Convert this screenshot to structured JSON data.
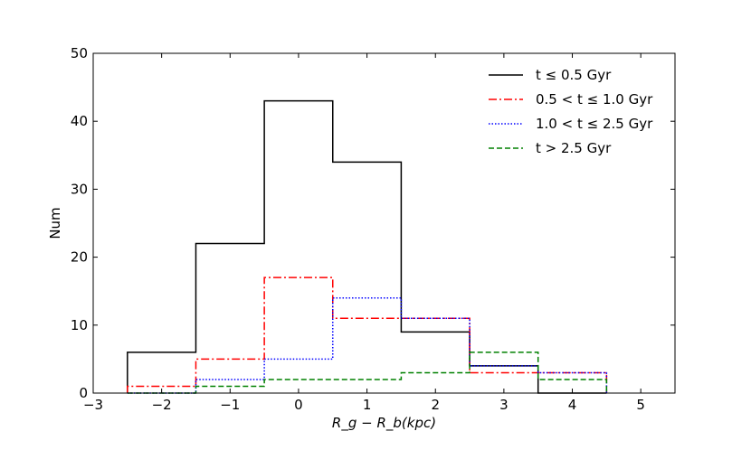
{
  "chart_data": {
    "type": "step-histogram",
    "xlabel": "R_g − R_b(kpc)",
    "ylabel": "Num",
    "xlim": [
      -3,
      5.5
    ],
    "ylim": [
      0,
      50
    ],
    "xticks": [
      -3,
      -2,
      -1,
      0,
      1,
      2,
      3,
      4,
      5
    ],
    "yticks": [
      0,
      10,
      20,
      30,
      40,
      50
    ],
    "xtick_labels": [
      "−3",
      "−2",
      "−1",
      "0",
      "1",
      "2",
      "3",
      "4",
      "5"
    ],
    "ytick_labels": [
      "0",
      "10",
      "20",
      "30",
      "40",
      "50"
    ],
    "bin_edges": [
      -2.5,
      -1.5,
      -0.5,
      0.5,
      1.5,
      2.5,
      3.5,
      4.5
    ],
    "legend_position": "upper right",
    "series": [
      {
        "name": "t ≤ 0.5 Gyr",
        "values": [
          6,
          22,
          43,
          34,
          9,
          4,
          0
        ],
        "color": "#000000",
        "dash": "solid"
      },
      {
        "name": "0.5 < t ≤ 1.0 Gyr",
        "values": [
          1,
          5,
          17,
          11,
          11,
          3,
          3
        ],
        "color": "#ff0000",
        "dash": "dashdot"
      },
      {
        "name": "1.0 < t ≤ 2.5 Gyr",
        "values": [
          0,
          2,
          5,
          14,
          11,
          4,
          3
        ],
        "color": "#0000ff",
        "dash": "dotted"
      },
      {
        "name": "t > 2.5 Gyr",
        "values": [
          0,
          1,
          2,
          2,
          3,
          6,
          2
        ],
        "color": "#008000",
        "dash": "dashed"
      }
    ]
  }
}
